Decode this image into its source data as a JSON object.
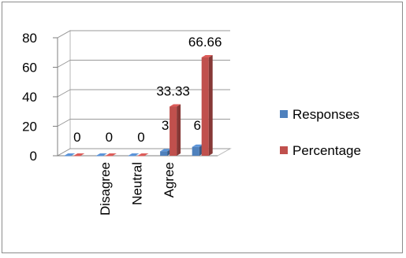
{
  "chart_data": {
    "type": "bar",
    "categories": [
      "",
      "Disagree",
      "Neutral",
      "Agree",
      ""
    ],
    "series": [
      {
        "name": "Responses",
        "values": [
          0,
          0,
          0,
          3,
          6
        ],
        "labels": [
          "",
          "",
          "",
          "3",
          "6"
        ],
        "color": "#4F81BD"
      },
      {
        "name": "Percentage",
        "values": [
          0,
          0,
          0,
          33.33,
          66.66
        ],
        "labels": [
          "0",
          "0",
          "0",
          "33.33",
          "66.66"
        ],
        "color": "#C0504D"
      }
    ],
    "yticks": [
      "0",
      "20",
      "40",
      "60",
      "80"
    ],
    "ylim": [
      0,
      80
    ],
    "grid": true,
    "style": "3d-clustered-column",
    "legend_position": "right"
  }
}
